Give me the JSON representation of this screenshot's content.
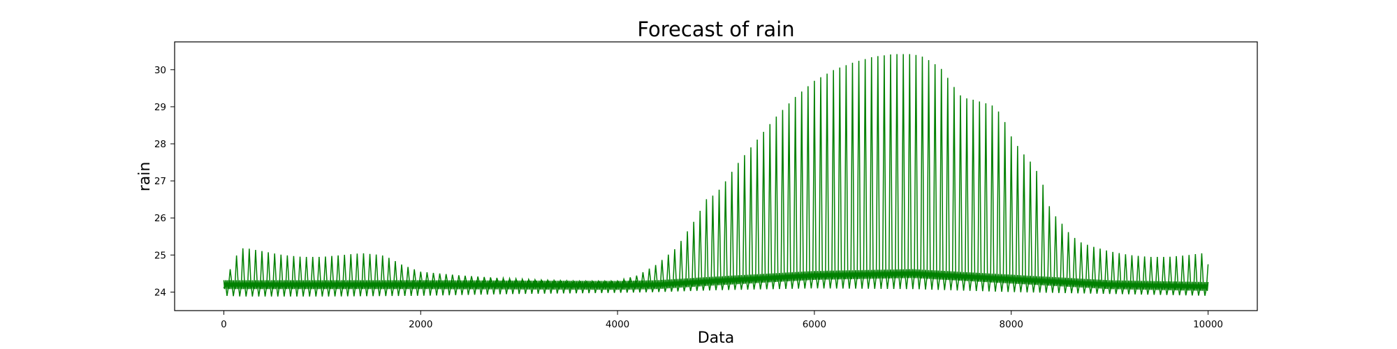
{
  "chart_data": {
    "type": "line",
    "title": "Forecast of rain",
    "xlabel": "Data",
    "ylabel": "rain",
    "xlim": [
      -500,
      10500
    ],
    "ylim": [
      23.5,
      30.75
    ],
    "xticks": [
      0,
      2000,
      4000,
      6000,
      8000,
      10000
    ],
    "yticks": [
      24,
      25,
      26,
      27,
      28,
      29,
      30
    ],
    "grid": false,
    "series": [
      {
        "color": "#008000",
        "style": "dense oscillating line (per-point samples alternate between upper and lower envelope)",
        "upper_envelope": {
          "x": [
            0,
            50,
            100,
            200,
            400,
            600,
            800,
            1000,
            1200,
            1400,
            1600,
            1700,
            1800,
            2000,
            2400,
            2800,
            3200,
            3600,
            4000,
            4200,
            4400,
            4600,
            4700,
            4800,
            4900,
            5000,
            5100,
            5200,
            5400,
            5600,
            5800,
            6000,
            6200,
            6400,
            6600,
            6800,
            7000,
            7100,
            7200,
            7300,
            7400,
            7500,
            7600,
            7800,
            7900,
            8000,
            8100,
            8200,
            8300,
            8400,
            8500,
            8600,
            8700,
            8800,
            9000,
            9200,
            9400,
            9600,
            9800,
            9950,
            10000
          ],
          "y": [
            24.1,
            24.5,
            24.9,
            25.2,
            25.1,
            25.0,
            24.95,
            24.95,
            25.0,
            25.05,
            25.0,
            24.9,
            24.75,
            24.55,
            24.45,
            24.38,
            24.33,
            24.3,
            24.3,
            24.45,
            24.75,
            25.2,
            25.6,
            26.0,
            26.5,
            26.65,
            27.0,
            27.4,
            28.05,
            28.7,
            29.25,
            29.7,
            30.0,
            30.2,
            30.35,
            30.42,
            30.42,
            30.35,
            30.2,
            30.0,
            29.6,
            29.25,
            29.2,
            29.05,
            28.8,
            28.2,
            27.8,
            27.5,
            27.1,
            26.2,
            25.9,
            25.55,
            25.35,
            25.25,
            25.1,
            25.0,
            24.95,
            24.95,
            25.0,
            25.05,
            24.75
          ]
        },
        "lower_envelope": {
          "x": [
            0,
            200,
            1000,
            2000,
            3000,
            4000,
            4400,
            5000,
            6000,
            7000,
            8000,
            9000,
            10000
          ],
          "y": [
            23.9,
            23.88,
            23.88,
            23.9,
            23.95,
            23.98,
            24.0,
            24.05,
            24.1,
            24.08,
            24.0,
            23.95,
            23.9
          ]
        },
        "mid_band": {
          "x": [
            0,
            2000,
            4000,
            4400,
            5000,
            6000,
            7000,
            8000,
            9000,
            10000
          ],
          "y": [
            24.2,
            24.2,
            24.18,
            24.2,
            24.3,
            24.45,
            24.5,
            24.35,
            24.2,
            24.15
          ]
        }
      }
    ]
  }
}
